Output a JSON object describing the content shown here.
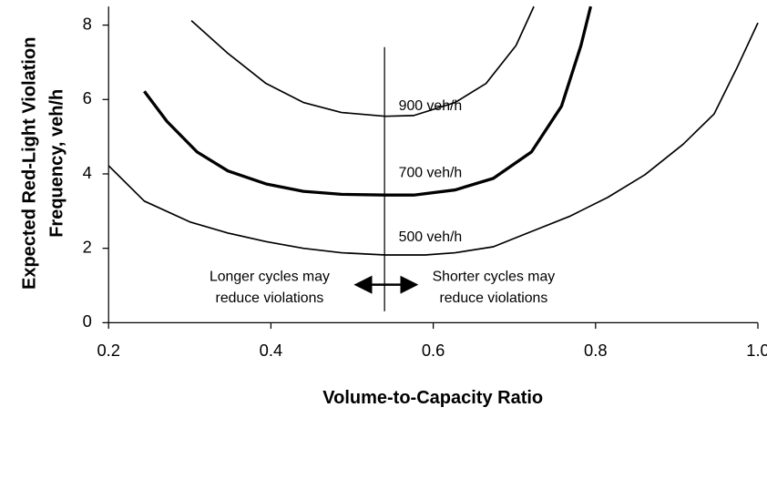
{
  "chart_data": {
    "type": "line",
    "xlabel": "Volume-to-Capacity Ratio",
    "ylabel": [
      "Expected Red-Light Violation",
      "Frequency, veh/h"
    ],
    "xlim": [
      0.2,
      1.0
    ],
    "ylim": [
      0,
      8.5
    ],
    "xticks": [
      0.2,
      0.4,
      0.6,
      0.8,
      {
        "value": 1.0,
        "label": "1.0"
      }
    ],
    "yticks": [
      0,
      2,
      4,
      6,
      8
    ],
    "color": "#000000",
    "reference_x": 0.54,
    "series": [
      {
        "name": "900 veh/h",
        "color": "#000000",
        "linewidth": 2,
        "x": [
          0.302,
          0.347,
          0.394,
          0.44,
          0.487,
          0.541,
          0.576,
          0.627,
          0.665,
          0.702,
          0.724
        ],
        "values": [
          8.12,
          7.24,
          6.43,
          5.92,
          5.65,
          5.55,
          5.57,
          5.92,
          6.43,
          7.45,
          8.5
        ]
      },
      {
        "name": "700 veh/h",
        "color": "#000000",
        "linewidth": 4,
        "x": [
          0.244,
          0.272,
          0.309,
          0.347,
          0.394,
          0.44,
          0.487,
          0.541,
          0.576,
          0.627,
          0.674,
          0.721,
          0.758,
          0.782,
          0.794
        ],
        "values": [
          6.22,
          5.41,
          4.59,
          4.08,
          3.73,
          3.53,
          3.45,
          3.43,
          3.43,
          3.57,
          3.88,
          4.59,
          5.82,
          7.45,
          8.5
        ]
      },
      {
        "name": "500 veh/h",
        "color": "#000000",
        "linewidth": 2,
        "x": [
          0.2,
          0.244,
          0.3,
          0.347,
          0.394,
          0.44,
          0.487,
          0.541,
          0.59,
          0.627,
          0.674,
          0.721,
          0.768,
          0.815,
          0.861,
          0.908,
          0.946,
          0.974,
          1.0
        ],
        "values": [
          4.22,
          3.27,
          2.71,
          2.41,
          2.18,
          2.0,
          1.88,
          1.82,
          1.82,
          1.88,
          2.04,
          2.45,
          2.86,
          3.37,
          3.98,
          4.8,
          5.61,
          6.84,
          8.06
        ]
      }
    ],
    "annotations": [
      {
        "lines": [
          "Longer cycles may",
          "reduce violations"
        ]
      },
      {
        "lines": [
          "Shorter cycles may",
          "reduce violations"
        ]
      }
    ]
  }
}
